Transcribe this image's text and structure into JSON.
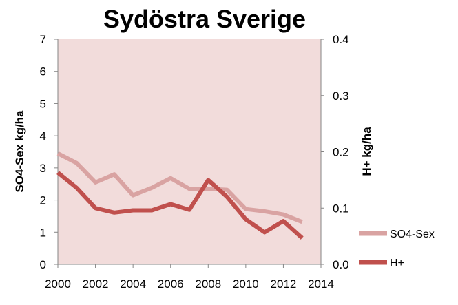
{
  "chart_data": {
    "type": "line",
    "title": "Sydöstra Sverige",
    "x": [
      2000,
      2001,
      2002,
      2003,
      2004,
      2005,
      2006,
      2007,
      2008,
      2009,
      2010,
      2011,
      2012,
      2013
    ],
    "xlim": [
      2000,
      2014
    ],
    "x_ticks": [
      "2000",
      "2002",
      "2004",
      "2006",
      "2008",
      "2010",
      "2012",
      "2014"
    ],
    "y_left": {
      "label": "SO4-Sex kg/ha",
      "lim": [
        0,
        7
      ],
      "ticks": [
        "0",
        "1",
        "2",
        "3",
        "4",
        "5",
        "6",
        "7"
      ]
    },
    "y_right": {
      "label": "H+ kg/ha",
      "lim": [
        0,
        0.4
      ],
      "ticks": [
        "0.0",
        "0.1",
        "0.2",
        "0.3",
        "0.4"
      ]
    },
    "series": [
      {
        "name": "SO4-Sex",
        "axis": "left",
        "color": "#d9a3a2",
        "values": [
          3.45,
          3.15,
          2.55,
          2.8,
          2.15,
          2.38,
          2.68,
          2.35,
          2.35,
          2.32,
          1.72,
          1.65,
          1.55,
          1.32
        ]
      },
      {
        "name": "H+",
        "axis": "right",
        "color": "#c0504d",
        "values": [
          0.163,
          0.136,
          0.1,
          0.092,
          0.096,
          0.096,
          0.107,
          0.097,
          0.15,
          0.12,
          0.08,
          0.057,
          0.077,
          0.047
        ]
      }
    ],
    "plot_background": "#f2dcdb",
    "grid": false,
    "legend_position": "bottom-right"
  }
}
